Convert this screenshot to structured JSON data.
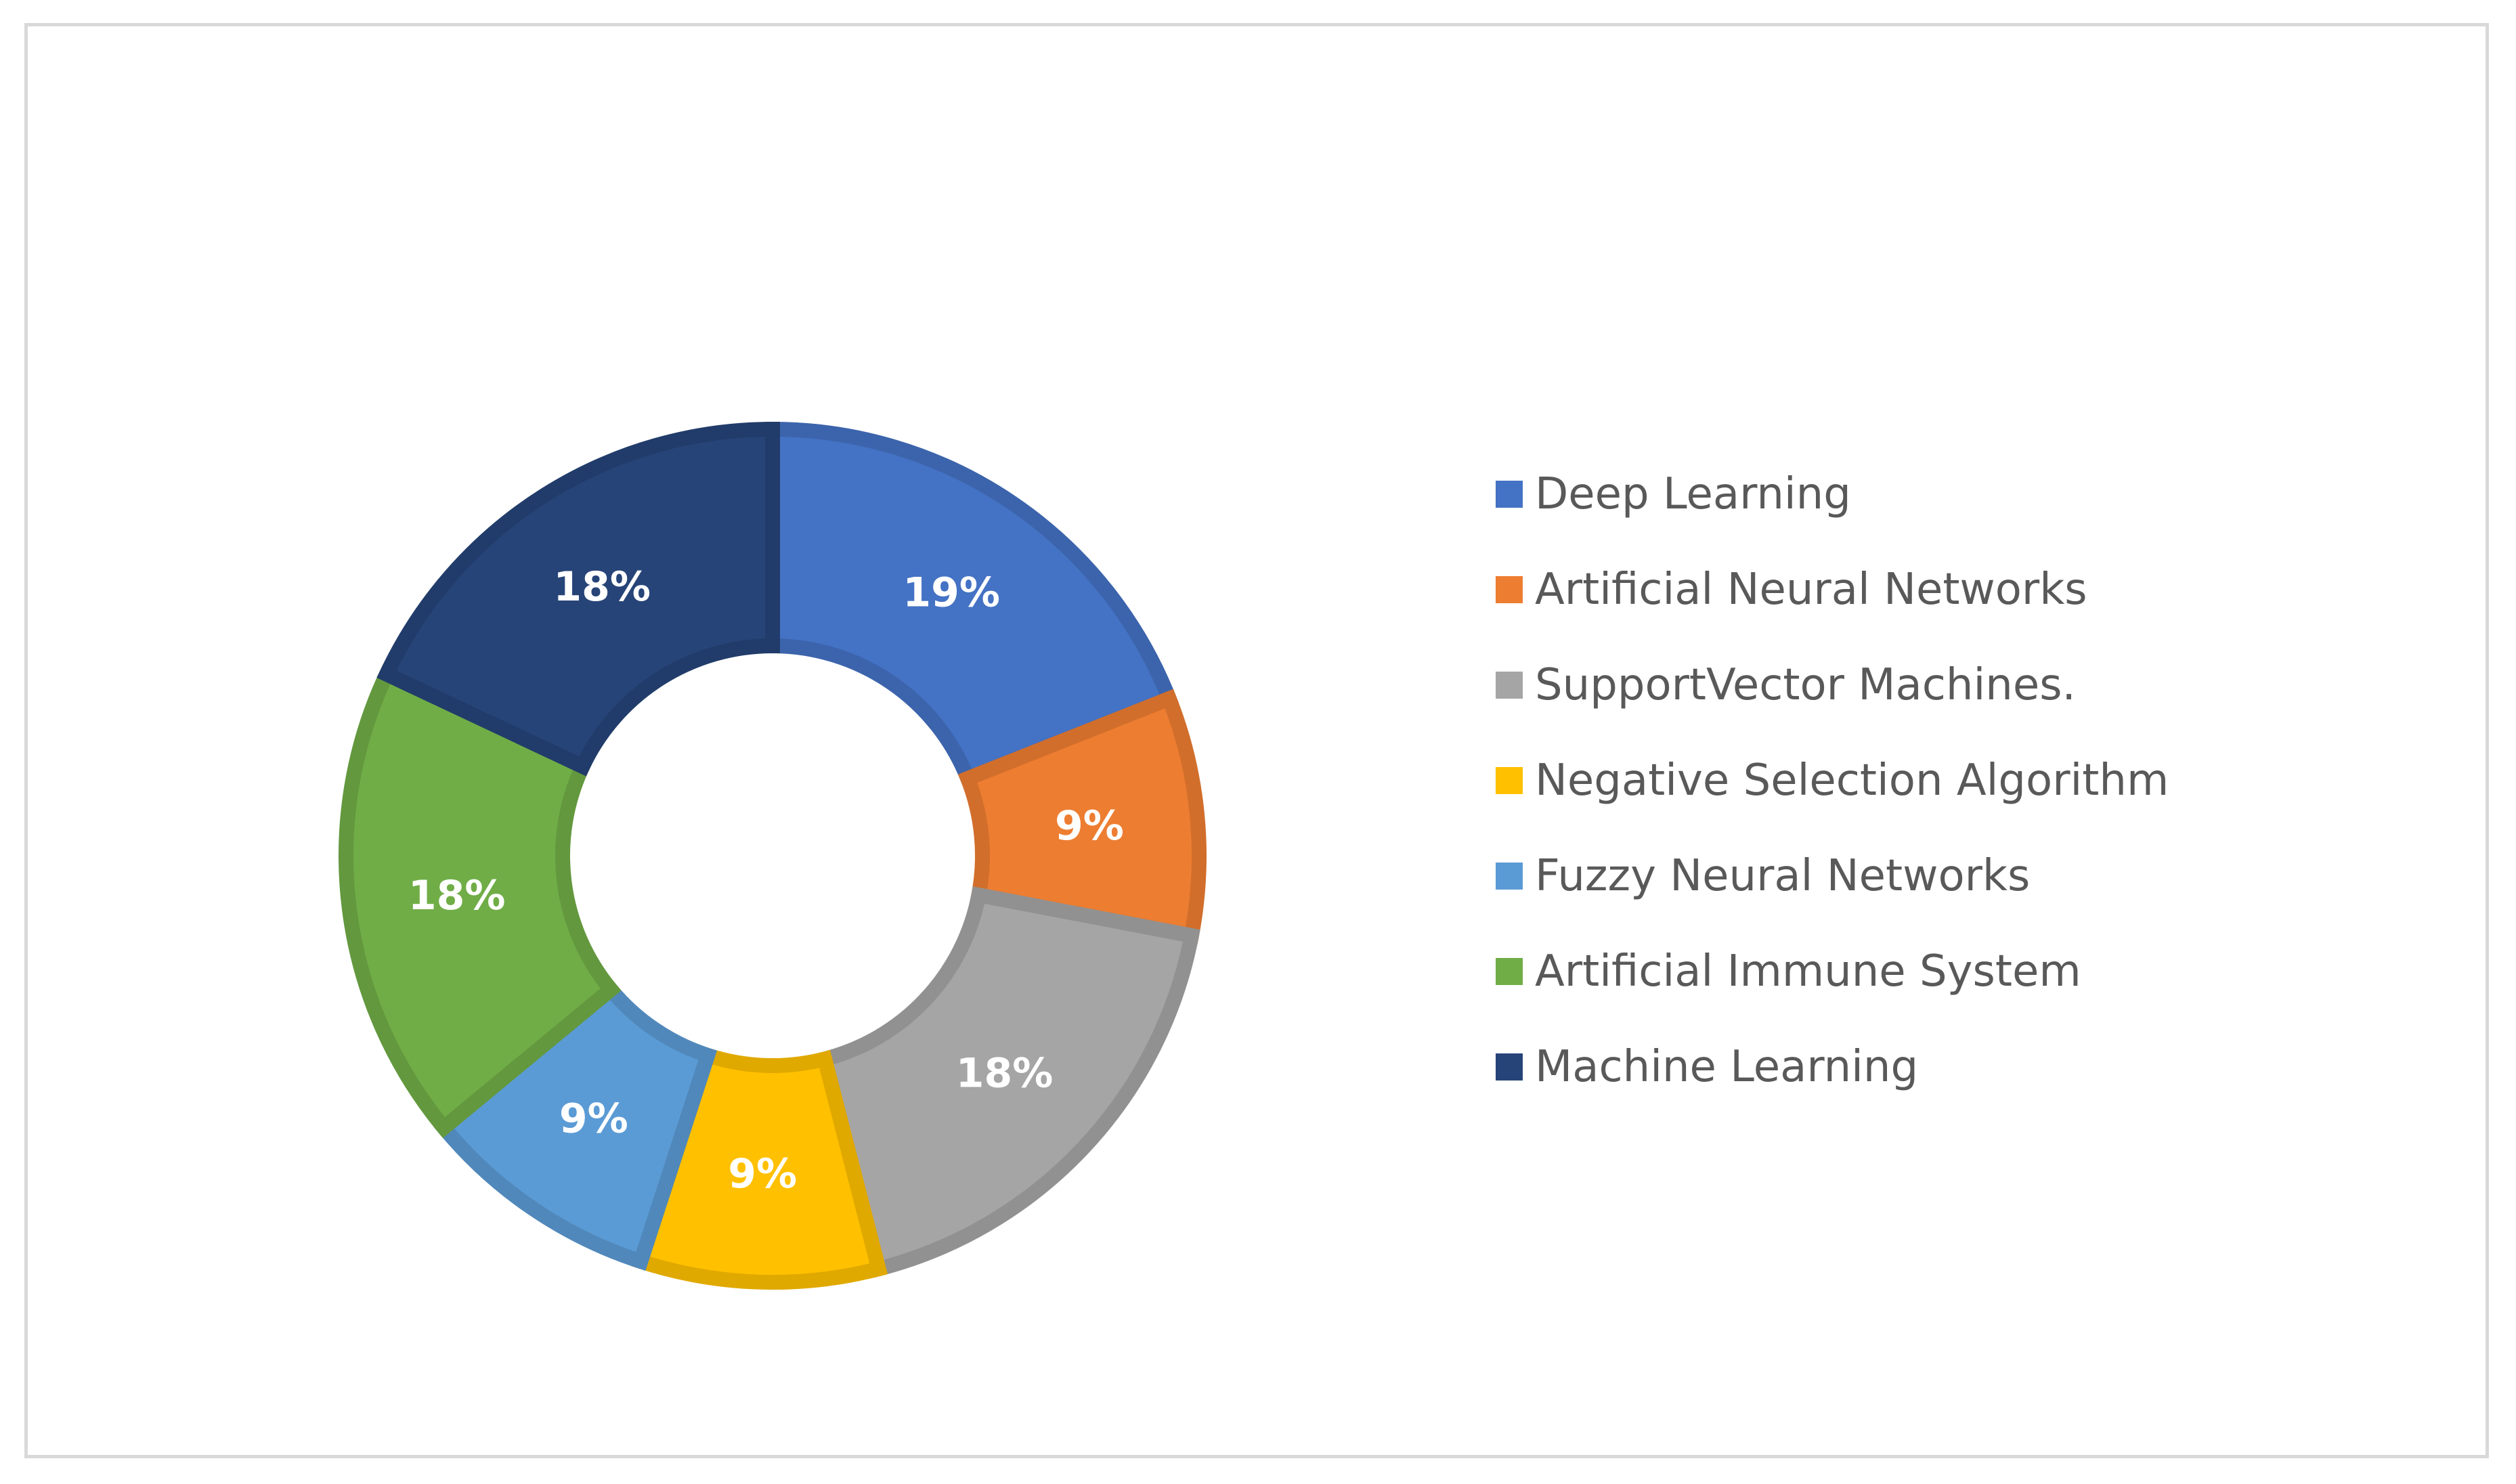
{
  "chart_data": {
    "type": "pie",
    "donut": true,
    "slices": [
      {
        "label": "Deep Learning",
        "value": 19,
        "display": "19%",
        "color": "#4472C4"
      },
      {
        "label": "Artificial Neural Networks",
        "value": 9,
        "display": "9%",
        "color": "#ED7D31"
      },
      {
        "label": "SupportVector Machines.",
        "value": 18,
        "display": "18%",
        "color": "#A5A5A5"
      },
      {
        "label": "Negative Selection Algorithm",
        "value": 9,
        "display": "9%",
        "color": "#FFC000"
      },
      {
        "label": "Fuzzy Neural Networks",
        "value": 9,
        "display": "9%",
        "color": "#5B9BD5"
      },
      {
        "label": "Artificial Immune System",
        "value": 18,
        "display": "18%",
        "color": "#70AD47"
      },
      {
        "label": "Machine Learning",
        "value": 18,
        "display": "18%",
        "color": "#264478"
      }
    ],
    "legend_position": "right"
  }
}
